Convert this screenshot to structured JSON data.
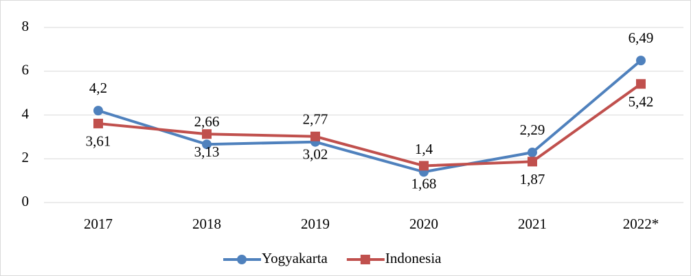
{
  "chart_data": {
    "type": "line",
    "categories": [
      "2017",
      "2018",
      "2019",
      "2020",
      "2021",
      "2022*"
    ],
    "series": [
      {
        "name": "Yogyakarta",
        "color": "#4f81bd",
        "marker": "circle",
        "values": [
          4.2,
          2.66,
          2.77,
          1.4,
          2.29,
          6.49
        ],
        "value_labels": [
          "4,2",
          "2,66",
          "2,77",
          "1,4",
          "2,29",
          "6,49"
        ]
      },
      {
        "name": "Indonesia",
        "color": "#c0504d",
        "marker": "square",
        "values": [
          3.61,
          3.13,
          3.02,
          1.68,
          1.87,
          5.42
        ],
        "value_labels": [
          "3,61",
          "3,13",
          "3,02",
          "1,68",
          "1,87",
          "5,42"
        ]
      }
    ],
    "ylim": [
      0,
      8
    ],
    "yticks": [
      0,
      2,
      4,
      6,
      8
    ],
    "grid": true,
    "legend": "bottom"
  }
}
